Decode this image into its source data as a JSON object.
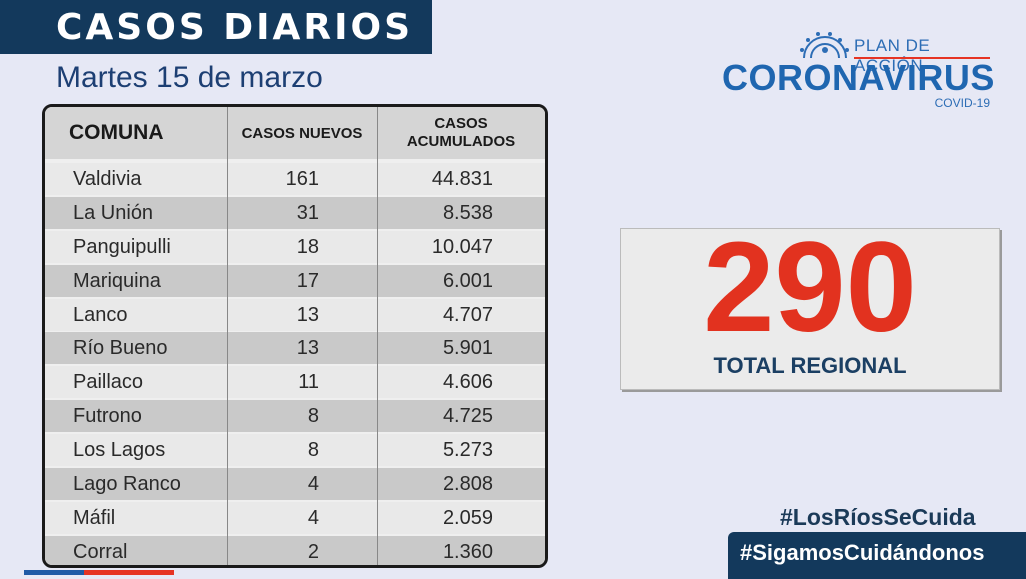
{
  "header": {
    "title": "CASOS DIARIOS",
    "date": "Martes 15 de marzo"
  },
  "logo": {
    "plan": "PLAN DE ACCIÓN",
    "brand": "CORONAVIRUS",
    "sub": "COVID-19",
    "icon": "virus-icon"
  },
  "table": {
    "headers": {
      "comuna": "COMUNA",
      "nuevos": "CASOS NUEVOS",
      "acum_line1": "CASOS",
      "acum_line2": "ACUMULADOS"
    },
    "rows": [
      {
        "comuna": "Valdivia",
        "nuevos": "161",
        "acumulados": "44.831"
      },
      {
        "comuna": "La Unión",
        "nuevos": "31",
        "acumulados": "8.538"
      },
      {
        "comuna": "Panguipulli",
        "nuevos": "18",
        "acumulados": "10.047"
      },
      {
        "comuna": "Mariquina",
        "nuevos": "17",
        "acumulados": "6.001"
      },
      {
        "comuna": "Lanco",
        "nuevos": "13",
        "acumulados": "4.707"
      },
      {
        "comuna": "Río Bueno",
        "nuevos": "13",
        "acumulados": "5.901"
      },
      {
        "comuna": "Paillaco",
        "nuevos": "11",
        "acumulados": "4.606"
      },
      {
        "comuna": "Futrono",
        "nuevos": "8",
        "acumulados": "4.725"
      },
      {
        "comuna": "Los Lagos",
        "nuevos": "8",
        "acumulados": "5.273"
      },
      {
        "comuna": "Lago Ranco",
        "nuevos": "4",
        "acumulados": "2.808"
      },
      {
        "comuna": "Máfil",
        "nuevos": "4",
        "acumulados": "2.059"
      },
      {
        "comuna": "Corral",
        "nuevos": "2",
        "acumulados": "1.360"
      }
    ]
  },
  "total": {
    "number": "290",
    "label": "TOTAL REGIONAL"
  },
  "hashtags": {
    "one": "#LosRíosSeCuida",
    "two": "#SigamosCuidándonos"
  },
  "colors": {
    "navy": "#13395c",
    "red": "#e2321f",
    "blue": "#1f66b0"
  }
}
